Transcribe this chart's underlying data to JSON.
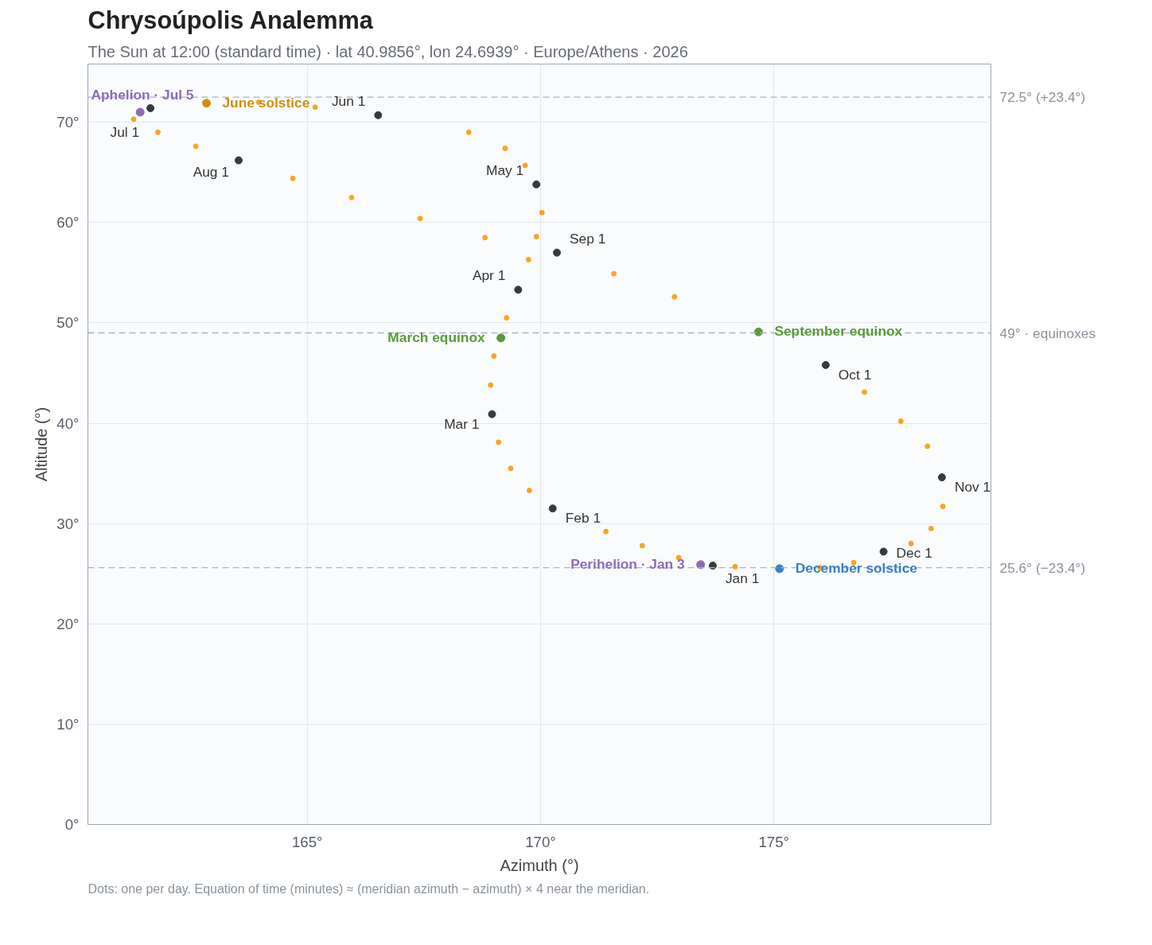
{
  "chart_data": {
    "type": "scatter",
    "title": "Chrysoúpolis Analemma",
    "subtitle": "The Sun at 12:00 (standard time) · lat 40.9856°, lon 24.6939° · Europe/Athens · 2026",
    "xlabel": "Azimuth (°)",
    "ylabel": "Altitude (°)",
    "xlim": [
      160.3,
      179.65
    ],
    "ylim": [
      0,
      75.8
    ],
    "xticks": [
      {
        "value": 165,
        "label": "165°"
      },
      {
        "value": 170,
        "label": "170°"
      },
      {
        "value": 175,
        "label": "175°"
      }
    ],
    "yticks": [
      {
        "value": 0,
        "label": "0°"
      },
      {
        "value": 10,
        "label": "10°"
      },
      {
        "value": 20,
        "label": "20°"
      },
      {
        "value": 30,
        "label": "30°"
      },
      {
        "value": 40,
        "label": "40°"
      },
      {
        "value": 50,
        "label": "50°"
      },
      {
        "value": 60,
        "label": "60°"
      },
      {
        "value": 70,
        "label": "70°"
      }
    ],
    "grid": true,
    "legend": false,
    "marker": "circle",
    "ref_lines": [
      {
        "axis": "y",
        "value": 72.5,
        "label": "72.5° (+23.4°)",
        "color": "#aab4c0",
        "line_style": "dashed"
      },
      {
        "axis": "y",
        "value": 49,
        "label": "49° · equinoxes",
        "color": "#aab4c0",
        "line_style": "dashed"
      },
      {
        "axis": "y",
        "value": 25.6,
        "label": "25.6° (−23.4°)",
        "color": "#aab4c0",
        "line_style": "dashed"
      }
    ],
    "series": [
      {
        "color": "#f5a623",
        "x": [
          172.96,
          172.18,
          171.4,
          169.76,
          169.36,
          169.1,
          168.93,
          169.0,
          169.27,
          169.74,
          169.91,
          170.03,
          169.67,
          169.24,
          168.46,
          165.17,
          163.96,
          161.28,
          161.8,
          162.61,
          164.69,
          165.95,
          167.42,
          168.81,
          171.57,
          172.87,
          176.94,
          177.72,
          178.29,
          178.62,
          178.37,
          177.94,
          176.71,
          175.99,
          174.17
        ],
        "values": [
          26.6,
          27.8,
          29.2,
          33.3,
          35.5,
          38.1,
          43.8,
          46.7,
          50.5,
          56.3,
          58.6,
          61.0,
          65.7,
          67.4,
          69.0,
          71.5,
          72.0,
          70.3,
          69.0,
          67.6,
          64.4,
          62.5,
          60.4,
          58.5,
          54.9,
          52.6,
          43.1,
          40.2,
          37.7,
          31.7,
          29.5,
          28.0,
          26.1,
          25.6,
          25.7
        ]
      },
      {
        "color": "#343a40",
        "x": [
          173.69,
          170.26,
          168.96,
          169.52,
          169.91,
          166.52,
          161.64,
          163.53,
          170.35,
          176.11,
          178.6,
          177.35
        ],
        "values": [
          25.8,
          31.5,
          40.9,
          53.3,
          63.8,
          70.7,
          71.4,
          66.2,
          57.0,
          45.8,
          34.6,
          27.2
        ]
      },
      {
        "name": "June solstice",
        "color": "#d18f0c",
        "x": [
          162.84
        ],
        "values": [
          71.9
        ]
      },
      {
        "name": "Aphelion · Jul 5",
        "color": "#8e6bb8",
        "x": [
          161.42
        ],
        "values": [
          71.0
        ]
      },
      {
        "name": "March equinox",
        "color": "#5a9a3a",
        "x": [
          169.15
        ],
        "values": [
          48.5
        ]
      },
      {
        "name": "September equinox",
        "color": "#5a9a3a",
        "x": [
          174.67
        ],
        "values": [
          49.1
        ]
      },
      {
        "name": "Perihelion · Jan 3",
        "color": "#8e6bb8",
        "x": [
          173.43
        ],
        "values": [
          25.9
        ]
      },
      {
        "name": "December solstice",
        "color": "#3a7fc4",
        "x": [
          175.12
        ],
        "values": [
          25.5
        ]
      }
    ],
    "annotations": [
      {
        "text": "Jan 1",
        "x": 173.69,
        "y": 25.8
      },
      {
        "text": "Feb 1",
        "x": 170.26,
        "y": 31.5
      },
      {
        "text": "Mar 1",
        "x": 168.96,
        "y": 40.9
      },
      {
        "text": "Apr 1",
        "x": 169.52,
        "y": 53.3
      },
      {
        "text": "May 1",
        "x": 169.91,
        "y": 63.8
      },
      {
        "text": "Jun 1",
        "x": 166.52,
        "y": 70.7
      },
      {
        "text": "Jul 1",
        "x": 161.64,
        "y": 71.4
      },
      {
        "text": "Aug 1",
        "x": 163.53,
        "y": 66.2
      },
      {
        "text": "Sep 1",
        "x": 170.35,
        "y": 57.0
      },
      {
        "text": "Oct 1",
        "x": 176.11,
        "y": 45.8
      },
      {
        "text": "Nov 1",
        "x": 178.6,
        "y": 34.6
      },
      {
        "text": "Dec 1",
        "x": 177.35,
        "y": 27.2
      },
      "Dots: one per day. Equation of time (minutes) ≈ (meridian azimuth − azimuth) × 4 near the meridian."
    ]
  }
}
